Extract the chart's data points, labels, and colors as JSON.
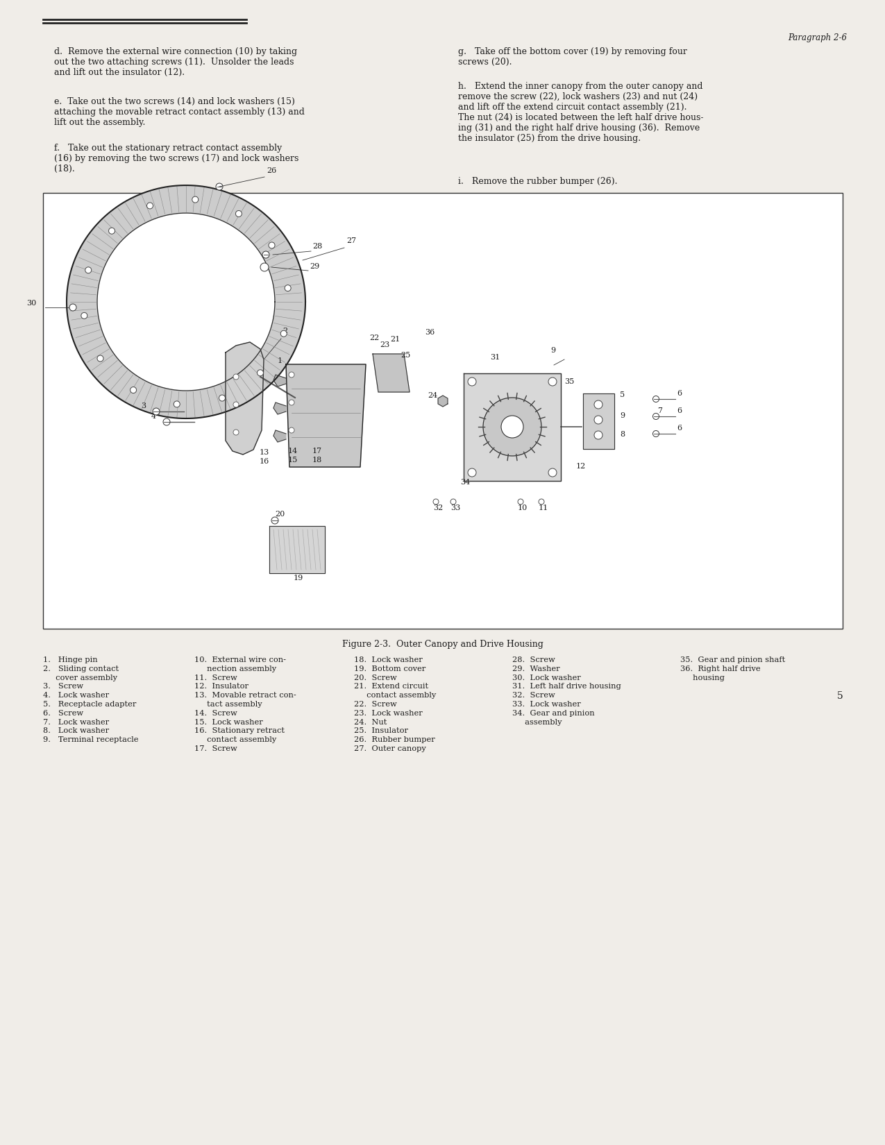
{
  "page_bg": "#f0ede8",
  "text_color": "#1a1a1a",
  "border_color": "#333333",
  "header_text": "Paragraph 2-6",
  "page_number": "5",
  "para_d": "d.  Remove the external wire connection (10) by taking\nout the two attaching screws (11).  Unsolder the leads\nand lift out the insulator (12).",
  "para_e": "e.  Take out the two screws (14) and lock washers (15)\nattaching the movable retract contact assembly (13) and\nlift out the assembly.",
  "para_f": "f.   Take out the stationary retract contact assembly\n(16) by removing the two screws (17) and lock washers\n(18).",
  "para_g": "g.   Take off the bottom cover (19) by removing four\nscrews (20).",
  "para_h": "h.   Extend the inner canopy from the outer canopy and\nremove the screw (22), lock washers (23) and nut (24)\nand lift off the extend circuit contact assembly (21).\nThe nut (24) is located between the left half drive hous-\ning (31) and the right half drive housing (36).  Remove\nthe insulator (25) from the drive housing.",
  "para_i": "i.   Remove the rubber bumper (26).",
  "fig_caption": "Figure 2-3.  Outer Canopy and Drive Housing",
  "col1": [
    "1.   Hinge pin",
    "2.   Sliding contact",
    "     cover assembly",
    "3.   Screw",
    "4.   Lock washer",
    "5.   Receptacle adapter",
    "6.   Screw",
    "7.   Lock washer",
    "8.   Lock washer",
    "9.   Terminal receptacle"
  ],
  "col2": [
    "10.  External wire con-",
    "     nection assembly",
    "11.  Screw",
    "12.  Insulator",
    "13.  Movable retract con-",
    "     tact assembly",
    "14.  Screw",
    "15.  Lock washer",
    "16.  Stationary retract",
    "     contact assembly",
    "17.  Screw"
  ],
  "col3": [
    "18.  Lock washer",
    "19.  Bottom cover",
    "20.  Screw",
    "21.  Extend circuit",
    "     contact assembly",
    "22.  Screw",
    "23.  Lock washer",
    "24.  Nut",
    "25.  Insulator",
    "26.  Rubber bumper",
    "27.  Outer canopy"
  ],
  "col4": [
    "28.  Screw",
    "29.  Washer",
    "30.  Lock washer",
    "31.  Left half drive housing",
    "32.  Screw",
    "33.  Lock washer",
    "34.  Gear and pinion",
    "     assembly"
  ],
  "col5": [
    "35.  Gear and pinion shaft",
    "36.  Right half drive",
    "     housing"
  ],
  "font_body": 9.0,
  "font_legend": 8.2,
  "font_caption": 9.0,
  "font_header": 8.5
}
